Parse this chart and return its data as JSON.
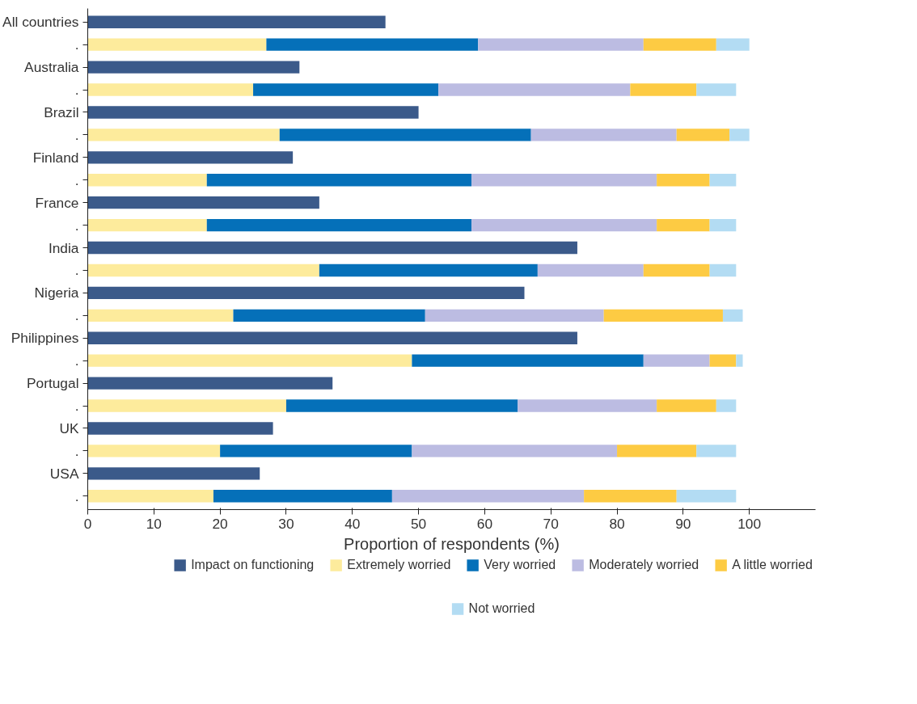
{
  "chart_data": {
    "type": "bar",
    "orientation": "horizontal",
    "stacked": true,
    "xlabel": "Proportion of respondents (%)",
    "categories": [
      "All countries",
      ".",
      "Australia",
      ".",
      "Brazil",
      ".",
      "Finland",
      ".",
      "France",
      ".",
      "India",
      ".",
      "Nigeria",
      ".",
      "Philippines",
      ".",
      "Portugal",
      ".",
      "UK",
      ".",
      "USA",
      "."
    ],
    "series": [
      {
        "name": "Impact on functioning",
        "color": "#3b5a8a",
        "values": [
          45,
          null,
          32,
          null,
          50,
          null,
          31,
          null,
          35,
          null,
          74,
          null,
          66,
          null,
          74,
          null,
          37,
          null,
          28,
          null,
          26,
          null
        ]
      },
      {
        "name": "Extremely worried",
        "color": "#fdeb9c",
        "values": [
          null,
          27,
          null,
          25,
          null,
          29,
          null,
          18,
          null,
          18,
          null,
          35,
          null,
          22,
          null,
          49,
          null,
          30,
          null,
          20,
          null,
          19
        ]
      },
      {
        "name": "Very worried",
        "color": "#0570b9",
        "values": [
          null,
          32,
          null,
          28,
          null,
          38,
          null,
          40,
          null,
          40,
          null,
          33,
          null,
          29,
          null,
          35,
          null,
          35,
          null,
          29,
          null,
          27
        ]
      },
      {
        "name": "Moderately worried",
        "color": "#bcbce2",
        "values": [
          null,
          25,
          null,
          29,
          null,
          22,
          null,
          28,
          null,
          28,
          null,
          16,
          null,
          27,
          null,
          10,
          null,
          21,
          null,
          31,
          null,
          29
        ]
      },
      {
        "name": "A little worried",
        "color": "#fdcb43",
        "values": [
          null,
          11,
          null,
          10,
          null,
          8,
          null,
          8,
          null,
          8,
          null,
          10,
          null,
          18,
          null,
          4,
          null,
          9,
          null,
          12,
          null,
          14
        ]
      },
      {
        "name": "Not worried",
        "color": "#b3dcf3",
        "values": [
          null,
          5,
          null,
          6,
          null,
          3,
          null,
          4,
          null,
          4,
          null,
          4,
          null,
          3,
          null,
          1,
          null,
          3,
          null,
          6,
          null,
          9
        ]
      }
    ],
    "xlim": [
      0,
      110
    ],
    "xticks": [
      0,
      10,
      20,
      30,
      40,
      50,
      60,
      70,
      80,
      90,
      100
    ],
    "grid": false,
    "legend": "bottom"
  }
}
